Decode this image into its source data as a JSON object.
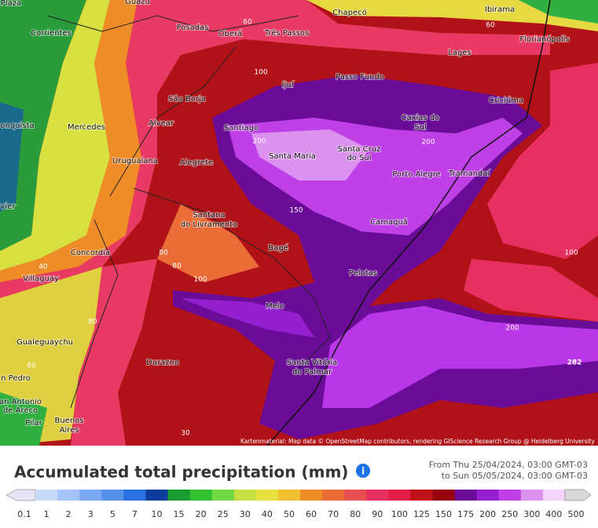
{
  "map": {
    "cities": [
      "Plaza",
      "Guazú",
      "Corrientes",
      "Posadas",
      "Oberá",
      "Três Passos",
      "Chapecó",
      "Ibirama",
      "Florianópolis",
      "Lages",
      "Ijuí",
      "Passo Fundo",
      "São Borja",
      "Criciúma",
      "onquista",
      "Mercedes",
      "Alvear",
      "Santiago",
      "Caxias do",
      "Sul",
      "Santa Maria",
      "Santa Cruz",
      "do Sul",
      "Uruguaiana",
      "Alegrete",
      "Porto Alegre",
      "Tramandaí",
      "vier",
      "Santana",
      "do Livramento",
      "Camaquã",
      "Concordia",
      "Bagé",
      "Villaguay",
      "Pelotas",
      "Melo",
      "Gualeguaychu",
      "Durazno",
      "Santa Vitória",
      "do Palmar",
      "n Pedro",
      "an Antonio",
      "de Areco",
      "Pilar",
      "Buenos",
      "Aires"
    ],
    "contour_labels": [
      "60",
      "60",
      "100",
      "200",
      "200",
      "150",
      "80",
      "80",
      "100",
      "40",
      "60",
      "80",
      "100",
      "200",
      "282",
      "30"
    ],
    "attribution": "Kartenmaterial: Map data © OpenStreetMap contributors, rendering GIScience Research Group @ Heidelberg University"
  },
  "legend": {
    "title": "Accumulated total precipitation (mm)",
    "period": [
      "From Thu 25/04/2024, 03:00 GMT-03",
      "to Sun 05/05/2024, 03:00 GMT-03"
    ],
    "labels": [
      0.1,
      1,
      2,
      3,
      5,
      7,
      10,
      15,
      20,
      25,
      30,
      40,
      50,
      60,
      70,
      80,
      90,
      100,
      125,
      150,
      175,
      200,
      250,
      300,
      400,
      500
    ],
    "colors": [
      "#e4e4f4",
      "#c8d8f8",
      "#a4c4f8",
      "#7caaf2",
      "#5290ea",
      "#2a70e0",
      "#0c3c9c",
      "#189c30",
      "#30c030",
      "#70d840",
      "#c4e040",
      "#e8e040",
      "#f0c030",
      "#f08c28",
      "#ec6c38",
      "#e85050",
      "#e83060",
      "#e41c48",
      "#c01018",
      "#96000e",
      "#6a0c98",
      "#9420d0",
      "#c040e8",
      "#dc90f0",
      "#f2d4fa",
      "#d8d8d8"
    ]
  }
}
